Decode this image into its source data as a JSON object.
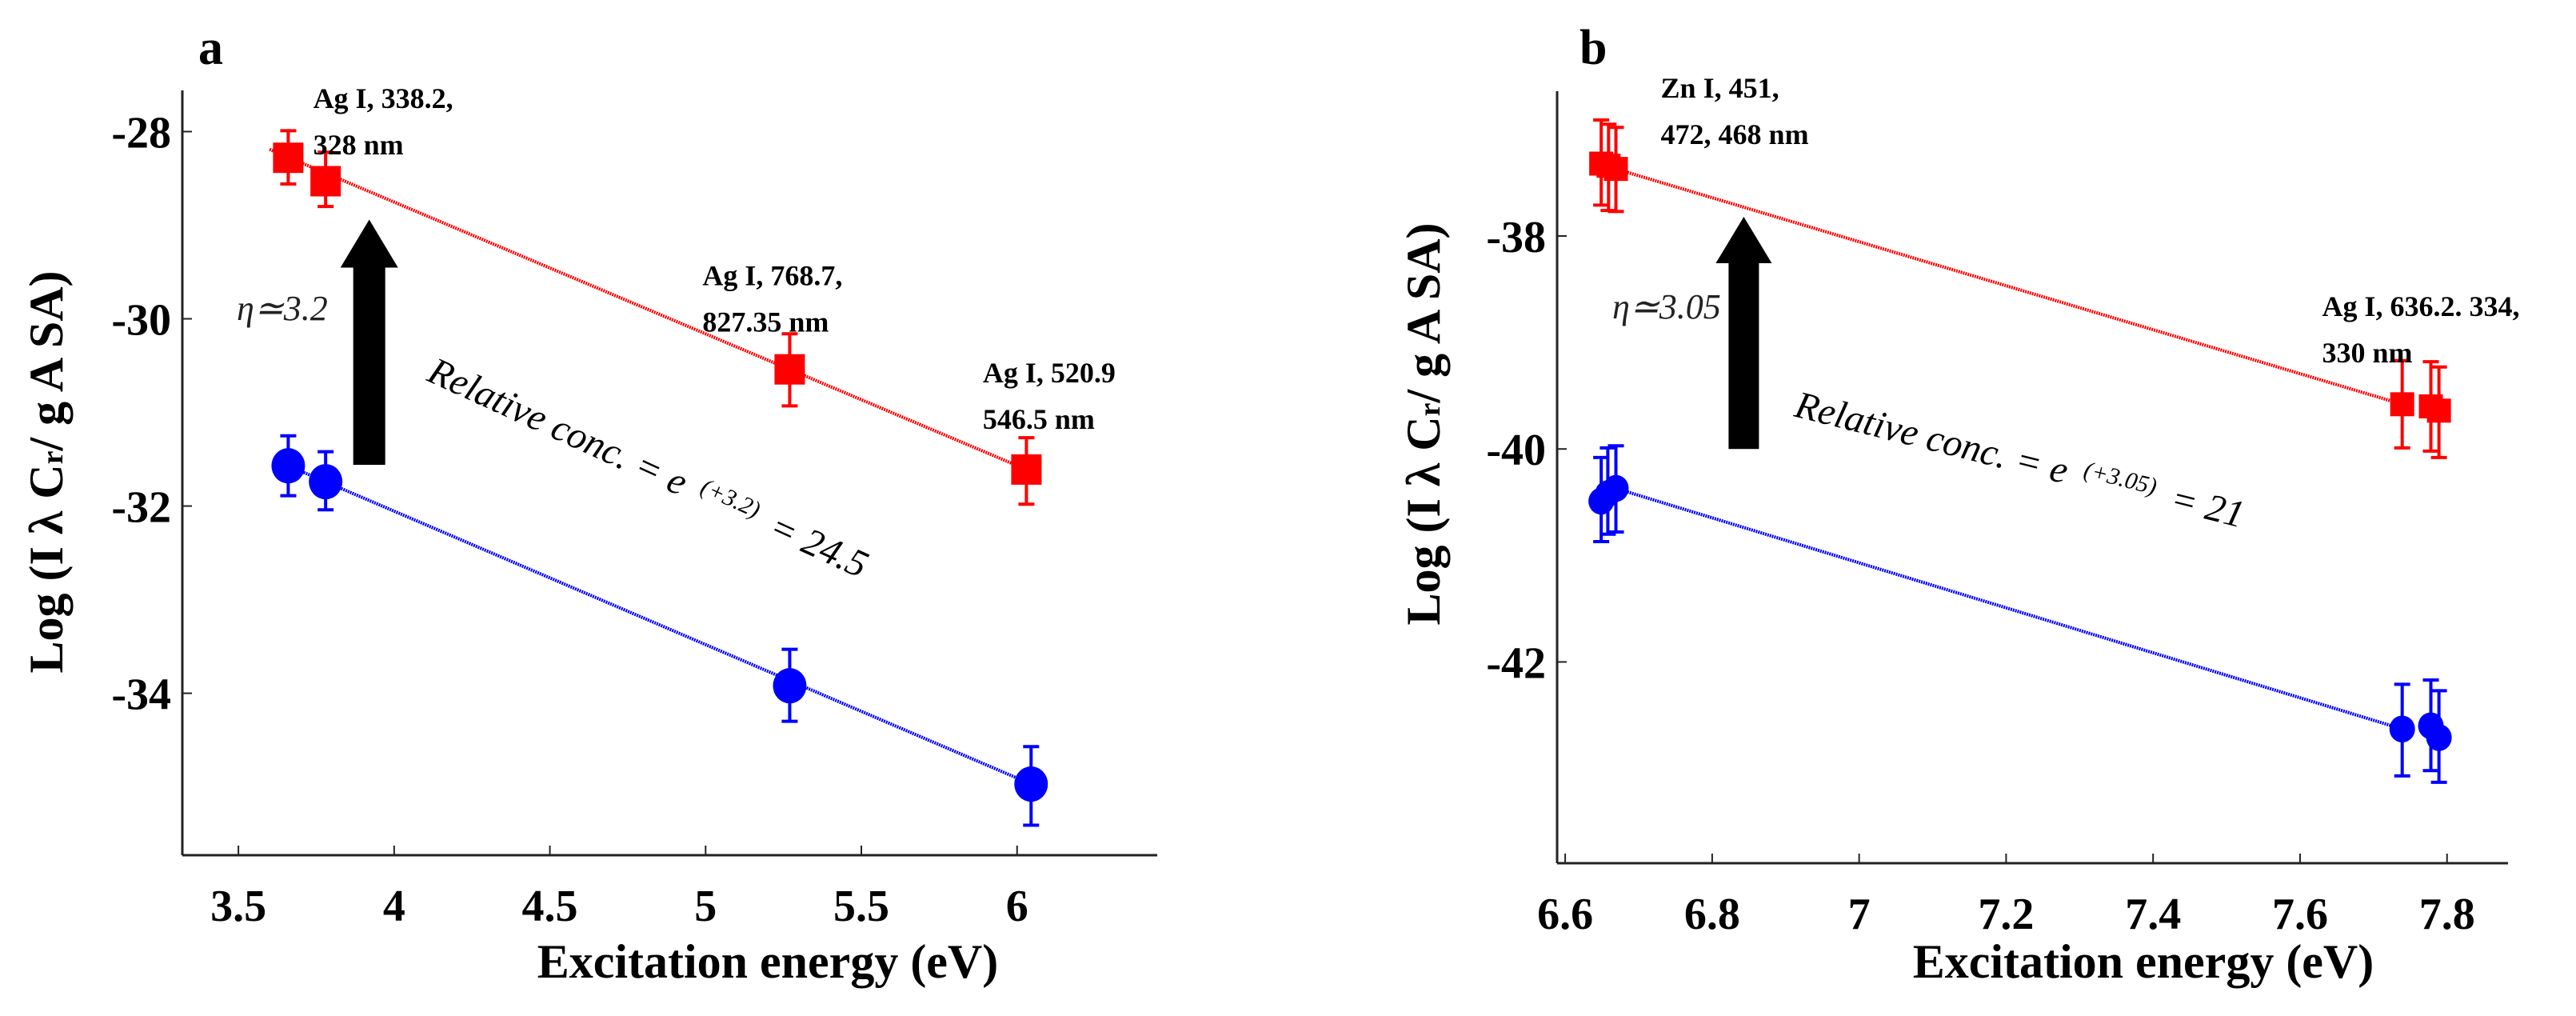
{
  "figure": {
    "panels": [
      "a",
      "b"
    ]
  },
  "chart_data": [
    {
      "type": "scatter",
      "panel_label": "a",
      "xlabel": "Excitation energy (eV)",
      "ylabel": "Log (I λ Cr/ g A SA)",
      "ylabel_parts": {
        "prefix": "Log (I λ C",
        "sub": "r",
        "suffix": "/ g A SA)"
      },
      "xlim": [
        3.32,
        6.45
      ],
      "ylim": [
        -35.73,
        -27.56
      ],
      "xticks": [
        3.5,
        4,
        4.5,
        5,
        5.5,
        6
      ],
      "xtick_labels": [
        "3.5",
        "4",
        "4.5",
        "5",
        "5.5",
        "6"
      ],
      "yticks": [
        -28,
        -30,
        -32,
        -34
      ],
      "ytick_labels": [
        "-28",
        "-30",
        "-32",
        "-34"
      ],
      "grid": false,
      "series": [
        {
          "name": "upper (red squares)",
          "color": "#ff0000",
          "marker": "square",
          "points": [
            {
              "x": 3.66,
              "y": -28.28,
              "err_low": -28.56,
              "err_high": -27.99
            },
            {
              "x": 3.78,
              "y": -28.53,
              "err_low": -28.8,
              "err_high": -28.22
            },
            {
              "x": 5.27,
              "y": -30.54,
              "err_low": -30.93,
              "err_high": -30.16
            },
            {
              "x": 6.03,
              "y": -31.61,
              "err_low": -31.98,
              "err_high": -31.27
            }
          ],
          "fit_line": {
            "x": [
              3.6,
              6.03
            ],
            "y": [
              -28.19,
              -31.61
            ]
          }
        },
        {
          "name": "lower (blue circles)",
          "color": "#0000ff",
          "marker": "circle",
          "points": [
            {
              "x": 3.66,
              "y": -31.57,
              "err_low": -31.89,
              "err_high": -31.25
            },
            {
              "x": 3.78,
              "y": -31.74,
              "err_low": -32.04,
              "err_high": -31.42
            },
            {
              "x": 5.27,
              "y": -33.92,
              "err_low": -34.3,
              "err_high": -33.53
            },
            {
              "x": 6.045,
              "y": -34.97,
              "err_low": -35.41,
              "err_high": -34.57
            }
          ],
          "fit_line": {
            "x": [
              3.66,
              6.045
            ],
            "y": [
              -31.57,
              -34.97
            ]
          }
        }
      ],
      "annotations": [
        {
          "lines": [
            "Ag I, 338.2,",
            "328 nm"
          ],
          "x": 3.74,
          "y": -27.75
        },
        {
          "lines": [
            "Ag I, 768.7,",
            "827.35 nm"
          ],
          "x": 4.99,
          "y": -29.64
        },
        {
          "lines": [
            "Ag I, 520.9",
            "546.5 nm"
          ],
          "x": 5.89,
          "y": -30.68
        }
      ],
      "arrow": {
        "x": 3.92,
        "y_from": -31.56,
        "y_to": -28.94
      },
      "eta_label": "η≃3.2",
      "relative_text": {
        "main": "Relative conc. = e",
        "sup": "(+3.2)",
        "tail": "= 24.5"
      }
    },
    {
      "type": "scatter",
      "panel_label": "b",
      "xlabel": "Excitation energy (eV)",
      "ylabel": "Log (I λ Cr/ g A SA)",
      "ylabel_parts": {
        "prefix": "Log (I λ C",
        "sub": "r",
        "suffix": "/ g A SA)"
      },
      "xlim": [
        6.589,
        7.883
      ],
      "ylim": [
        -43.89,
        -36.64
      ],
      "xticks": [
        6.6,
        6.8,
        7.0,
        7.2,
        7.4,
        7.6,
        7.8
      ],
      "xtick_labels": [
        "6.6",
        "6.8",
        "7",
        "7.2",
        "7.4",
        "7.6",
        "7.8"
      ],
      "yticks": [
        -38,
        -40,
        -42
      ],
      "ytick_labels": [
        "-38",
        "-40",
        "-42"
      ],
      "grid": false,
      "series": [
        {
          "name": "upper (red squares)",
          "color": "#ff0000",
          "marker": "square",
          "points": [
            {
              "x": 6.649,
              "y": -37.32,
              "err_low": -37.71,
              "err_high": -36.91
            },
            {
              "x": 6.659,
              "y": -37.34,
              "err_low": -37.76,
              "err_high": -36.95
            },
            {
              "x": 6.669,
              "y": -37.37,
              "err_low": -37.77,
              "err_high": -36.98
            },
            {
              "x": 7.739,
              "y": -39.58,
              "err_low": -39.99,
              "err_high": -39.17
            },
            {
              "x": 7.778,
              "y": -39.6,
              "err_low": -40.02,
              "err_high": -39.18
            },
            {
              "x": 7.789,
              "y": -39.64,
              "err_low": -40.08,
              "err_high": -39.23
            }
          ],
          "fit_line": {
            "x": [
              6.669,
              7.739
            ],
            "y": [
              -37.37,
              -39.58
            ]
          }
        },
        {
          "name": "lower (blue circles)",
          "color": "#0000ff",
          "marker": "circle",
          "points": [
            {
              "x": 6.649,
              "y": -40.49,
              "err_low": -40.87,
              "err_high": -40.08
            },
            {
              "x": 6.658,
              "y": -40.42,
              "err_low": -40.8,
              "err_high": -39.99
            },
            {
              "x": 6.669,
              "y": -40.37,
              "err_low": -40.78,
              "err_high": -39.97
            },
            {
              "x": 7.739,
              "y": -42.63,
              "err_low": -43.07,
              "err_high": -42.21
            },
            {
              "x": 7.778,
              "y": -42.6,
              "err_low": -43.02,
              "err_high": -42.17
            },
            {
              "x": 7.789,
              "y": -42.71,
              "err_low": -43.13,
              "err_high": -42.27
            }
          ],
          "fit_line": {
            "x": [
              6.669,
              7.739
            ],
            "y": [
              -40.37,
              -42.63
            ]
          }
        }
      ],
      "annotations": [
        {
          "lines": [
            "Zn I, 451,",
            "472, 468 nm"
          ],
          "x": 6.73,
          "y": -36.7
        },
        {
          "lines": [
            "Ag I, 636.2. 334,",
            "330 nm"
          ],
          "x": 7.63,
          "y": -38.75
        }
      ],
      "arrow": {
        "x": 6.843,
        "y_from": -40.0,
        "y_to": -37.82
      },
      "eta_label": "η≃3.05",
      "relative_text": {
        "main": "Relative conc. = e",
        "sup": "(+3.05)",
        "tail": "= 21"
      }
    }
  ]
}
